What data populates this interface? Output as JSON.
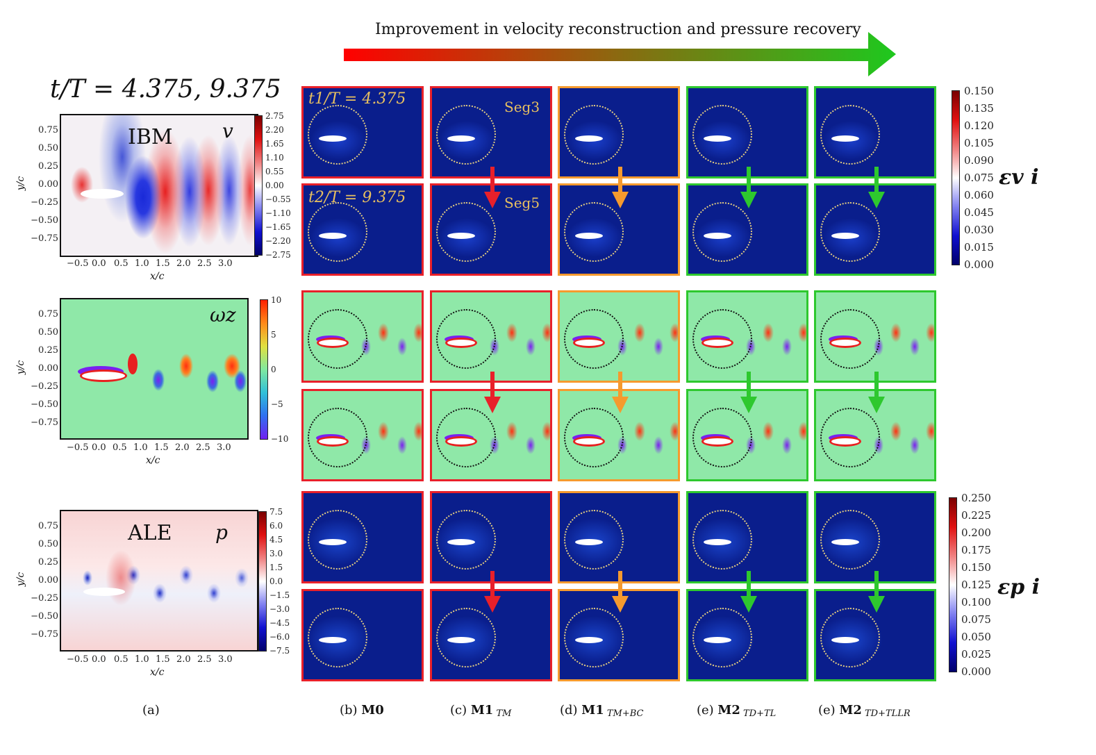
{
  "header": {
    "title": "Improvement in velocity reconstruction and pressure recovery",
    "gradient_start": "#ff0000",
    "gradient_end": "#1ec81e"
  },
  "time_label": "t/T = 4.375, 9.375",
  "left_panels": {
    "v": {
      "tag": "IBM",
      "symbol": "v",
      "cbar_ticks": [
        "2.75",
        "2.20",
        "1.65",
        "1.10",
        "0.55",
        "0.00",
        "−0.55",
        "−1.10",
        "−1.65",
        "−2.20",
        "−2.75"
      ]
    },
    "w": {
      "tag": "",
      "symbol": "ωz",
      "cbar_ticks": [
        "10",
        "5",
        "0",
        "−5",
        "−10"
      ]
    },
    "p": {
      "tag": "ALE",
      "symbol": "p",
      "cbar_ticks": [
        "7.5",
        "6.0",
        "4.5",
        "3.0",
        "1.5",
        "0.0",
        "−1.5",
        "−3.0",
        "−4.5",
        "−6.0",
        "−7.5"
      ]
    },
    "y_ticks": [
      "0.75",
      "0.50",
      "0.25",
      "0.00",
      "−0.25",
      "−0.50",
      "−0.75"
    ],
    "x_ticks": [
      "−0.5",
      "0.0",
      "0.5",
      "1.0",
      "1.5",
      "2.0",
      "2.5",
      "3.0"
    ],
    "ylabel": "y/c",
    "xlabel": "x/c"
  },
  "grid_labels": {
    "t1": "t1/T = 4.375",
    "t2": "t2/T = 9.375",
    "seg3": "Seg3",
    "seg5": "Seg5"
  },
  "error_cbars": {
    "v": {
      "label": "εv i",
      "ticks": [
        "0.150",
        "0.135",
        "0.120",
        "0.105",
        "0.090",
        "0.075",
        "0.060",
        "0.045",
        "0.030",
        "0.015",
        "0.000"
      ]
    },
    "p": {
      "label": "εp i",
      "ticks": [
        "0.250",
        "0.225",
        "0.200",
        "0.175",
        "0.150",
        "0.125",
        "0.100",
        "0.075",
        "0.050",
        "0.025",
        "0.000"
      ]
    }
  },
  "columns": [
    {
      "id": "b",
      "prefix": "(b)",
      "model": "M0",
      "suffix": "",
      "color": "#e8202a"
    },
    {
      "id": "c",
      "prefix": "(c)",
      "model": "M1",
      "suffix": "TM",
      "color": "#e8202a"
    },
    {
      "id": "d",
      "prefix": "(d)",
      "model": "M1",
      "suffix": "TM+BC",
      "color": "#f59a2e"
    },
    {
      "id": "e1",
      "prefix": "(e)",
      "model": "M2",
      "suffix": "TD+TL",
      "color": "#2ec82e"
    },
    {
      "id": "e2",
      "prefix": "(e)",
      "model": "M2",
      "suffix": "TD+TLLR",
      "color": "#2ec82e"
    }
  ],
  "caption_a": "(a)"
}
